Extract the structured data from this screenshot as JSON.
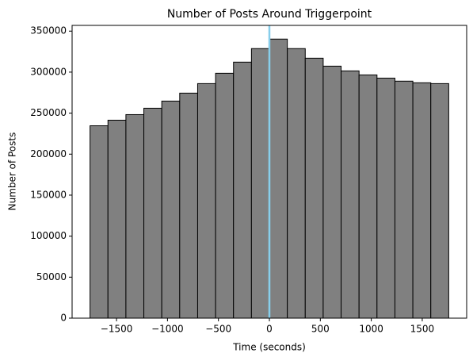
{
  "chart_data": {
    "type": "histogram",
    "title": "Number of Posts Around Triggerpoint",
    "x_label": "Time (seconds)",
    "y_label": "Number of Posts",
    "bins": [
      -1760,
      -1584,
      -1408,
      -1232,
      -1056,
      -880,
      -704,
      -528,
      -352,
      -176,
      0,
      176,
      352,
      528,
      704,
      880,
      1056,
      1232,
      1408,
      1584,
      1760
    ],
    "counts": [
      234600,
      241400,
      248200,
      256000,
      264700,
      274400,
      286000,
      298600,
      312200,
      328700,
      340300,
      328700,
      317000,
      307300,
      301500,
      296600,
      292700,
      289000,
      287000,
      286000
    ],
    "color": "#808080",
    "edgecolor": "#000000",
    "vline": {
      "x": 0,
      "color": "#87ceeb"
    },
    "xlim": [
      -1936,
      1936
    ],
    "ylim": [
      0,
      357000
    ],
    "xticks": [
      {
        "value": -1500,
        "label": "−1500"
      },
      {
        "value": -1000,
        "label": "−1000"
      },
      {
        "value": -500,
        "label": "−500"
      },
      0,
      500,
      1000,
      1500
    ],
    "yticks": [
      0,
      50000,
      100000,
      150000,
      200000,
      250000,
      300000,
      350000
    ],
    "grid": false
  }
}
